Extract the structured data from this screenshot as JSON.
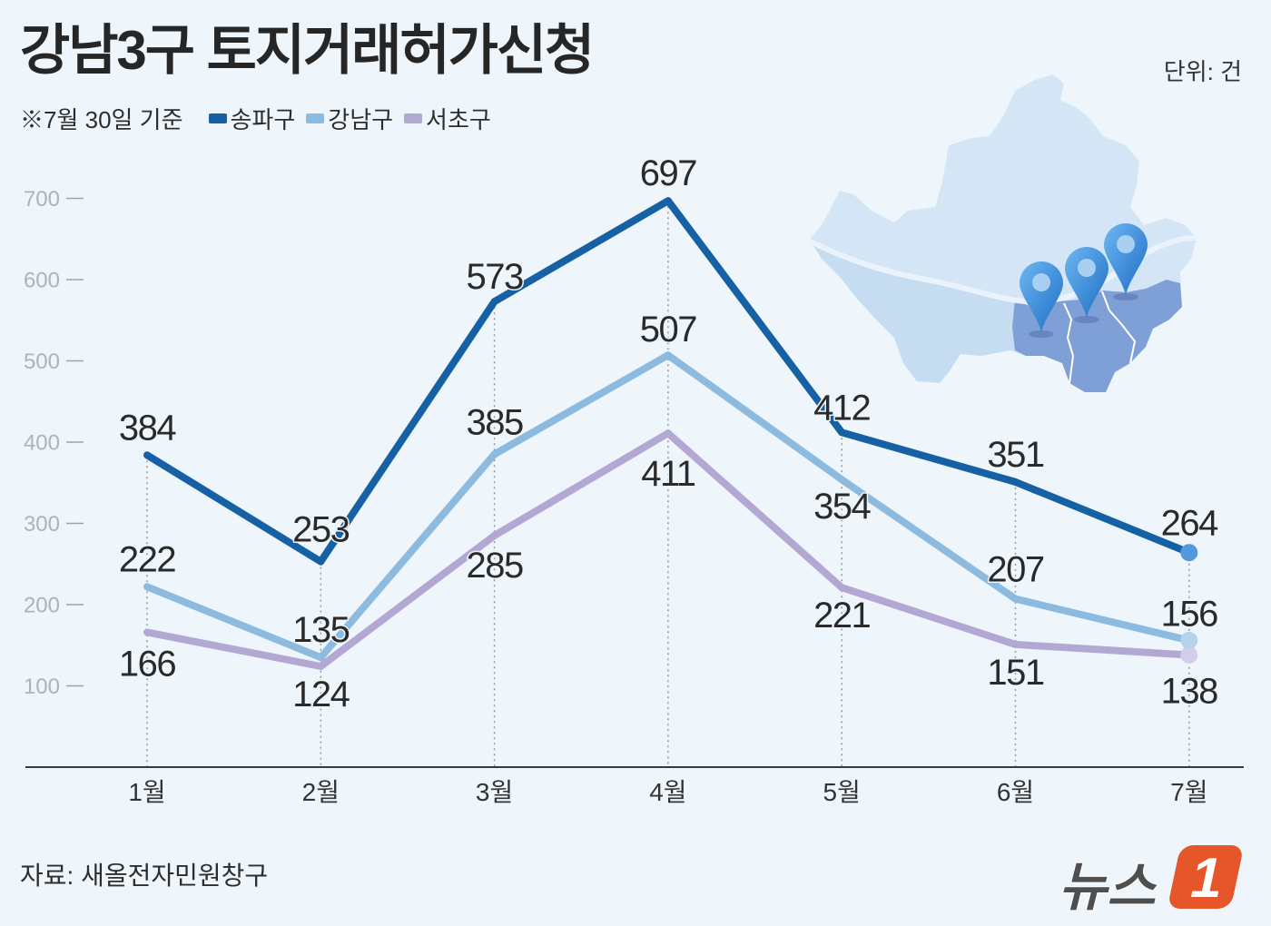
{
  "header": {
    "title": "강남3구 토지거래허가신청",
    "unit": "단위: 건",
    "note": "※7월 30일 기준"
  },
  "footer": {
    "source": "자료: 새올전자민원창구",
    "logo_text": "뉴스",
    "logo_number": "1"
  },
  "colors": {
    "background": "#eff6fb",
    "text": "#2a2a2a",
    "axis_tick": "#a9b4bc",
    "map_base": "#d4e6f6",
    "map_highlight": "#7f9fd7",
    "pin": "#2f80d8",
    "logo_orange": "#e5562a",
    "logo_text": "#4f4f4f"
  },
  "icons": {
    "pin": "location-pin-icon",
    "map": "seoul-map-icon"
  },
  "chart_data": {
    "type": "line",
    "categories": [
      "1월",
      "2월",
      "3월",
      "4월",
      "5월",
      "6월",
      "7월"
    ],
    "series": [
      {
        "name": "송파구",
        "color": "#1561a3",
        "end_marker_color": "#5499db",
        "values": [
          384,
          253,
          573,
          697,
          412,
          351,
          264
        ]
      },
      {
        "name": "강남구",
        "color": "#8dbbe0",
        "end_marker_color": "#b6d3ee",
        "values": [
          222,
          135,
          385,
          507,
          354,
          207,
          156
        ]
      },
      {
        "name": "서초구",
        "color": "#b2a8d3",
        "end_marker_color": "#d4cde9",
        "values": [
          166,
          124,
          285,
          411,
          221,
          151,
          138
        ]
      }
    ],
    "yticks": [
      100,
      200,
      300,
      400,
      500,
      600,
      700
    ],
    "ylim": [
      0,
      700
    ],
    "grid": false,
    "legend": "top-left"
  }
}
